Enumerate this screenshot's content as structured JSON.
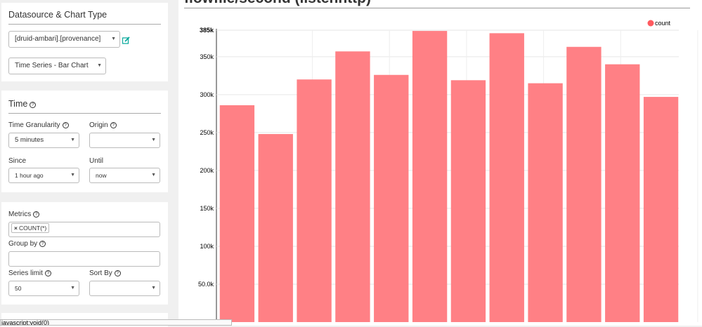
{
  "datasource_panel": {
    "title": "Datasource & Chart Type",
    "datasource_value": "[druid-ambari].[provenance]",
    "chart_type_value": "Time Series - Bar Chart"
  },
  "time_panel": {
    "title": "Time",
    "granularity_label": "Time Granularity",
    "granularity_value": "5 minutes",
    "origin_label": "Origin",
    "origin_value": "",
    "since_label": "Since",
    "since_value": "1 hour ago",
    "until_label": "Until",
    "until_value": "now"
  },
  "query_panel": {
    "metrics_label": "Metrics",
    "metric_tag": "COUNT(*)",
    "metric_remove": "×",
    "groupby_label": "Group by",
    "series_limit_label": "Series limit",
    "series_limit_value": "50",
    "sort_by_label": "Sort By",
    "sort_by_value": ""
  },
  "header": {
    "title": "flowfile/second (listenhttp)"
  },
  "status_bar": {
    "text": "javascript:void(0)"
  },
  "colors": {
    "bar": "#ff8085",
    "legend_dot": "#ff5a5f",
    "accent": "#00a699"
  },
  "chart_data": {
    "type": "bar",
    "legend": [
      "count"
    ],
    "legend_position": "top-right",
    "grid": true,
    "ylim": [
      0,
      385000
    ],
    "y_ticks": [
      "385k",
      "350k",
      "300k",
      "250k",
      "200k",
      "150k",
      "100k",
      "50.0k"
    ],
    "y_tick_values": [
      385000,
      350000,
      300000,
      250000,
      200000,
      150000,
      100000,
      50000
    ],
    "series": [
      {
        "name": "count",
        "values": [
          286000,
          248000,
          320000,
          357000,
          326000,
          384000,
          319000,
          381000,
          315000,
          363000,
          340000,
          297000
        ]
      }
    ]
  }
}
